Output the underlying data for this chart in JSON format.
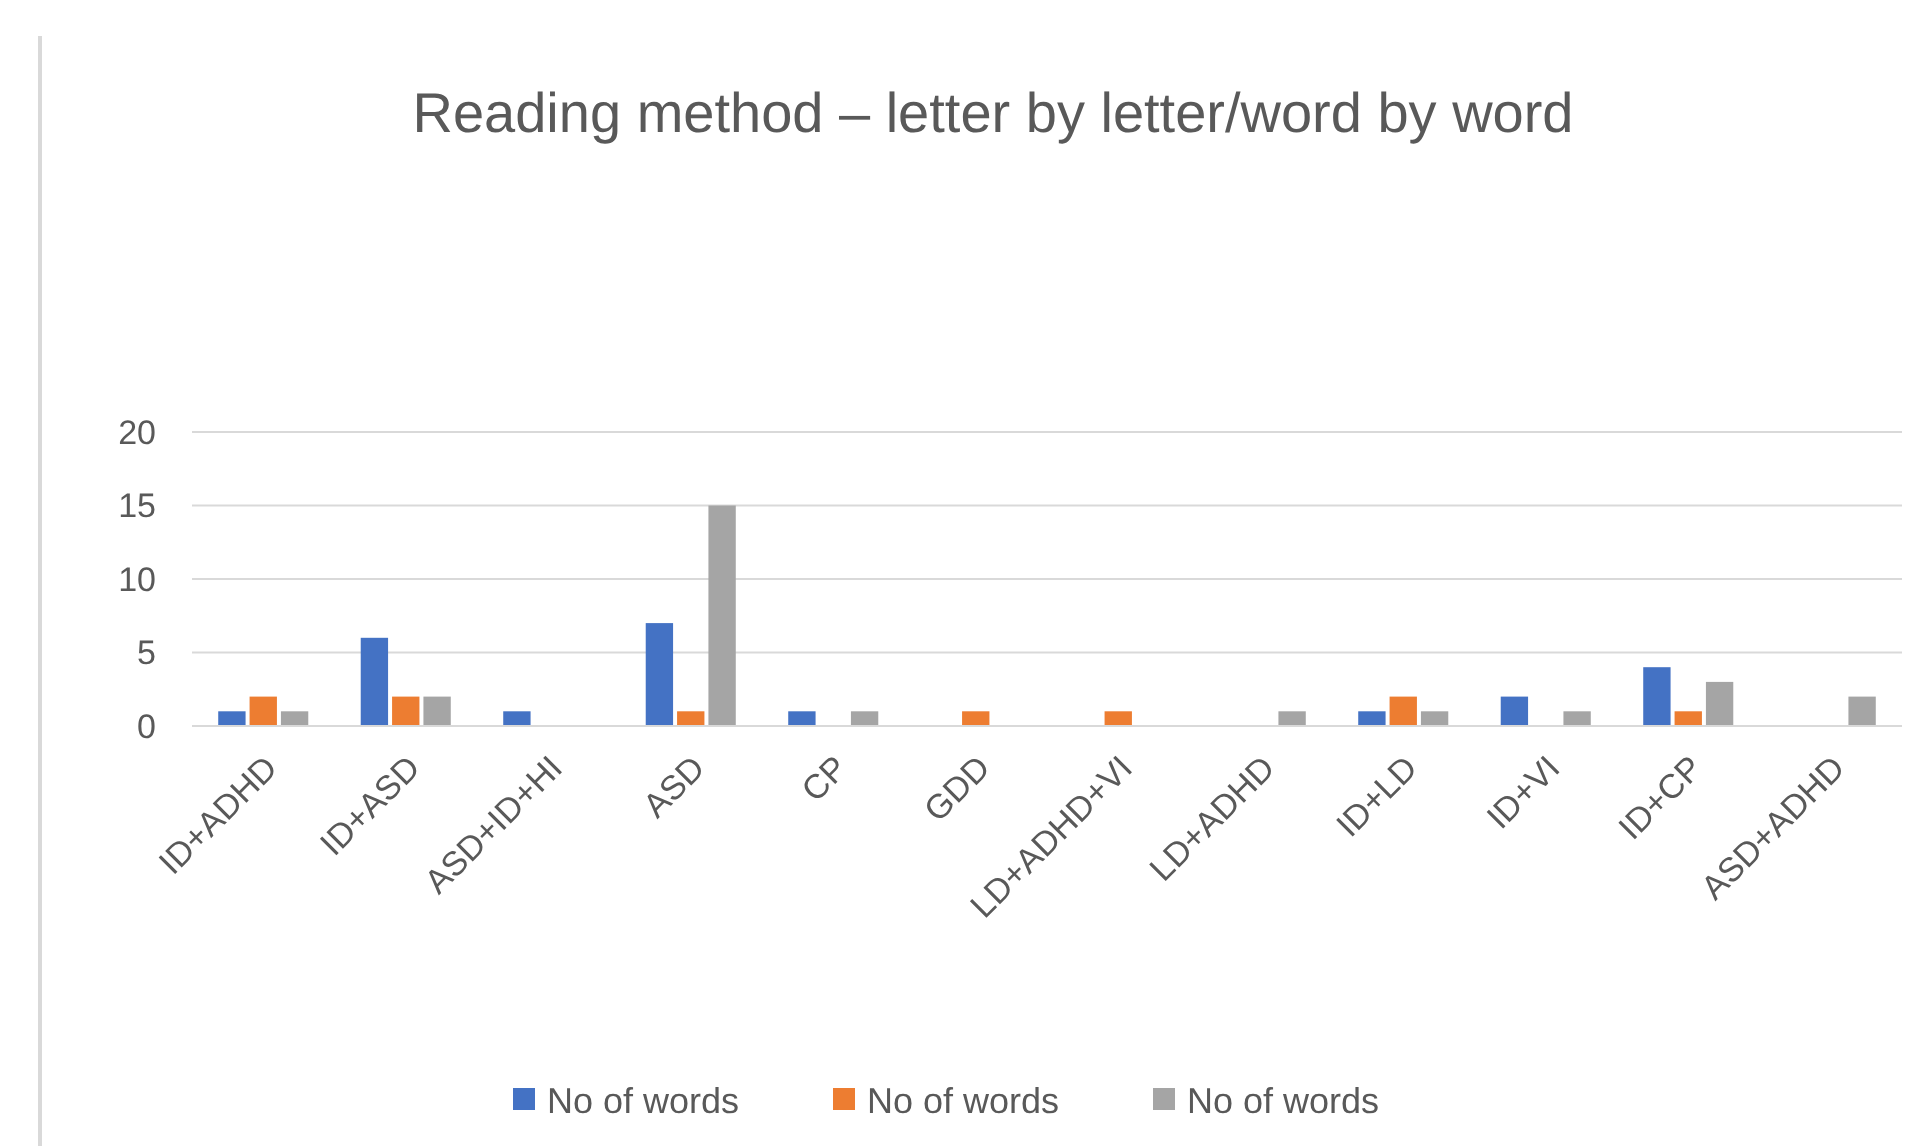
{
  "chart_data": {
    "type": "bar",
    "title": "Reading method – letter by letter/word by word",
    "categories": [
      "ID+ADHD",
      "ID+ASD",
      "ASD+ID+HI",
      "ASD",
      "CP",
      "GDD",
      "LD+ADHD+VI",
      "LD+ADHD",
      "ID+LD",
      "ID+VI",
      "ID+CP",
      "ASD+ADHD"
    ],
    "series": [
      {
        "name": "No of words",
        "color": "#4472c4",
        "values": [
          1,
          6,
          1,
          7,
          1,
          null,
          null,
          null,
          1,
          2,
          4,
          null
        ]
      },
      {
        "name": "No of words",
        "color": "#ed7d31",
        "values": [
          2,
          2,
          null,
          1,
          null,
          1,
          1,
          null,
          2,
          null,
          1,
          null
        ]
      },
      {
        "name": "No of words",
        "color": "#a5a5a5",
        "values": [
          1,
          2,
          null,
          15,
          1,
          null,
          null,
          1,
          1,
          1,
          3,
          2
        ]
      }
    ],
    "ylim": [
      0,
      20
    ],
    "yticks": [
      0,
      5,
      10,
      15,
      20
    ],
    "grid": "y",
    "legend": "bottom"
  }
}
